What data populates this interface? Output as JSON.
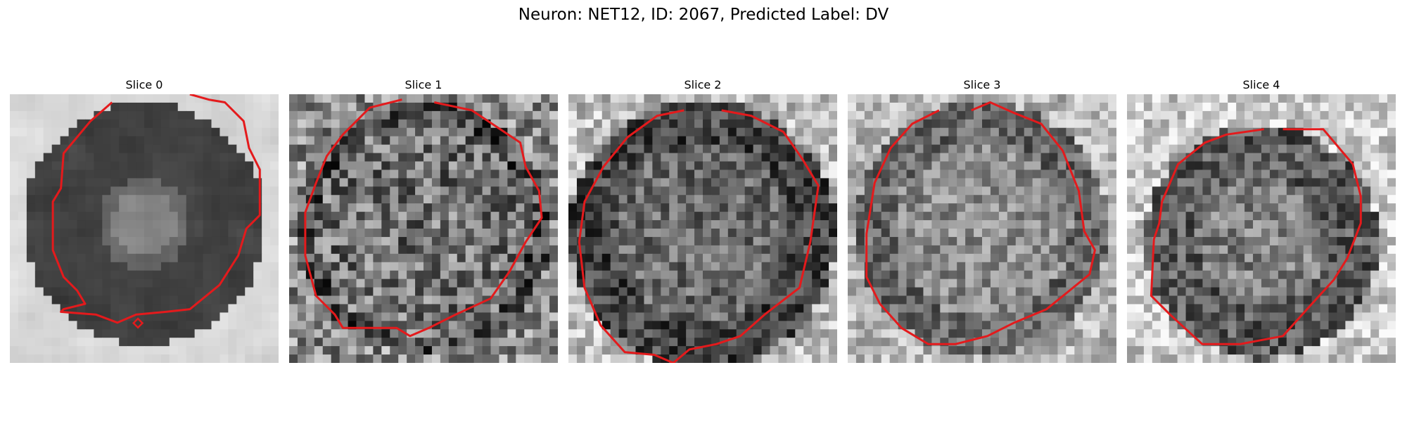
{
  "figure": {
    "title": "Neuron: NET12, ID: 2067, Predicted Label: DV"
  },
  "slices": [
    {
      "title": "Slice 0",
      "contour_color": "#e41a1c"
    },
    {
      "title": "Slice 1",
      "contour_color": "#e41a1c"
    },
    {
      "title": "Slice 2",
      "contour_color": "#e41a1c"
    },
    {
      "title": "Slice 3",
      "contour_color": "#e41a1c"
    },
    {
      "title": "Slice 4",
      "contour_color": "#e41a1c"
    }
  ],
  "colormap": "gray"
}
